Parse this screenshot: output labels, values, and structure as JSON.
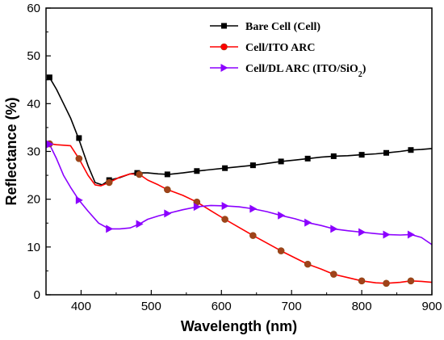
{
  "chart_data": {
    "type": "line",
    "title": "",
    "xlabel": "Wavelength (nm)",
    "ylabel": "Reflectance (%)",
    "xlim": [
      350,
      900
    ],
    "ylim": [
      0,
      60
    ],
    "x_ticks": [
      400,
      500,
      600,
      700,
      800,
      900
    ],
    "y_ticks": [
      0,
      10,
      20,
      30,
      40,
      50,
      60
    ],
    "grid": false,
    "legend_position": "top-right",
    "series": [
      {
        "name": "Bare Cell (Cell)",
        "color": "#000000",
        "marker": "square",
        "x": [
          355,
          365,
          375,
          385,
          397,
          410,
          420,
          430,
          440,
          455,
          470,
          480,
          495,
          510,
          525,
          545,
          565,
          585,
          605,
          625,
          645,
          665,
          685,
          705,
          723,
          742,
          760,
          780,
          800,
          820,
          835,
          855,
          870,
          885,
          900
        ],
        "y": [
          45.5,
          43,
          40,
          37,
          32.5,
          27,
          23.5,
          23,
          24,
          24.5,
          25.3,
          25.5,
          25.5,
          25.3,
          25.2,
          25.5,
          25.9,
          26.2,
          26.5,
          26.8,
          27.1,
          27.5,
          27.9,
          28.2,
          28.5,
          28.8,
          29.0,
          29.1,
          29.3,
          29.5,
          29.7,
          30.0,
          30.3,
          30.4,
          30.6
        ],
        "marker_x": [
          355,
          397,
          440,
          480,
          523,
          565,
          605,
          645,
          685,
          723,
          760,
          800,
          835,
          870
        ],
        "marker_y": [
          45.5,
          32.8,
          24.0,
          25.5,
          25.2,
          25.9,
          26.5,
          27.1,
          27.9,
          28.5,
          29.0,
          29.3,
          29.7,
          30.3
        ]
      },
      {
        "name": "Cell/ITO ARC",
        "color": "#ff0000",
        "marker": "circle",
        "x": [
          355,
          365,
          375,
          385,
          397,
          410,
          420,
          428,
          440,
          455,
          470,
          483,
          495,
          510,
          523,
          545,
          565,
          585,
          605,
          625,
          645,
          665,
          685,
          705,
          723,
          742,
          760,
          780,
          800,
          820,
          835,
          855,
          870,
          885,
          900
        ],
        "y": [
          31.6,
          31.4,
          31.3,
          31.2,
          28.5,
          25,
          23.0,
          22.8,
          23.5,
          24.6,
          25.3,
          25.2,
          24.0,
          23.0,
          22.0,
          20.8,
          19.4,
          17.6,
          15.8,
          14.1,
          12.4,
          10.8,
          9.2,
          7.7,
          6.4,
          5.4,
          4.3,
          3.6,
          2.9,
          2.5,
          2.4,
          2.6,
          2.9,
          2.8,
          2.6
        ],
        "marker_x": [
          355,
          397,
          440,
          483,
          523,
          565,
          605,
          645,
          685,
          723,
          760,
          800,
          835,
          870
        ],
        "marker_y": [
          31.6,
          28.5,
          23.5,
          25.2,
          22.0,
          19.4,
          15.8,
          12.4,
          9.2,
          6.4,
          4.3,
          2.9,
          2.4,
          2.9
        ]
      },
      {
        "name": "Cell/DL ARC (ITO/SiO2)",
        "color": "#8b00ff",
        "marker": "triangle-right",
        "x": [
          355,
          365,
          375,
          385,
          397,
          410,
          425,
          440,
          455,
          470,
          483,
          495,
          510,
          523,
          545,
          565,
          585,
          605,
          625,
          645,
          665,
          685,
          705,
          723,
          742,
          760,
          780,
          800,
          820,
          835,
          855,
          870,
          885,
          900
        ],
        "y": [
          31.5,
          28.5,
          25.0,
          22.5,
          19.8,
          17.5,
          15.0,
          13.8,
          13.8,
          14.0,
          14.8,
          15.8,
          16.5,
          17.0,
          17.8,
          18.4,
          18.7,
          18.6,
          18.4,
          18.0,
          17.4,
          16.6,
          15.9,
          15.1,
          14.5,
          13.8,
          13.4,
          13.1,
          12.8,
          12.6,
          12.5,
          12.6,
          12.0,
          10.5
        ],
        "marker_x": [
          355,
          397,
          440,
          483,
          523,
          565,
          605,
          645,
          685,
          723,
          760,
          800,
          835,
          870
        ],
        "marker_y": [
          31.5,
          19.8,
          13.8,
          14.8,
          17.0,
          18.4,
          18.6,
          18.0,
          16.6,
          15.1,
          13.8,
          13.1,
          12.6,
          12.6
        ]
      }
    ]
  }
}
